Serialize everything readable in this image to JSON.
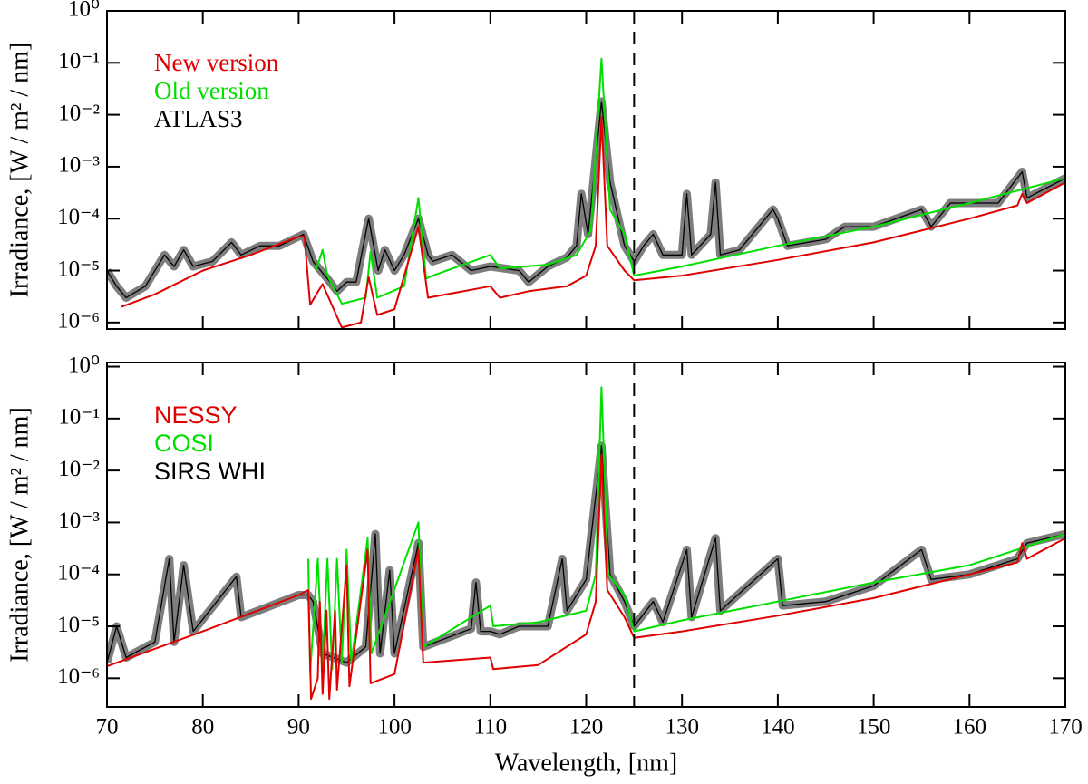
{
  "chart_data": [
    {
      "type": "line",
      "ylabel": "Irradiance, [W / m² / nm]",
      "log_y": true,
      "legend": "upper left",
      "xlim": [
        70,
        170
      ],
      "ylim": [
        7.5e-07,
        1
      ],
      "yticks": [
        {
          "value": 1,
          "label": "10⁰"
        },
        {
          "value": 0.1,
          "label": "10⁻¹"
        },
        {
          "value": 0.01,
          "label": "10⁻²"
        },
        {
          "value": 0.001,
          "label": "10⁻³"
        },
        {
          "value": 0.0001,
          "label": "10⁻⁴"
        },
        {
          "value": 1e-05,
          "label": "10⁻⁵"
        },
        {
          "value": 1e-06,
          "label": "10⁻⁶"
        }
      ],
      "vline": 125,
      "series": [
        {
          "name": "New version",
          "color": "#e00000",
          "x": [
            71.5,
            75,
            80,
            85,
            90,
            90.6,
            91.2,
            92.5,
            94.5,
            96.5,
            97.3,
            98.2,
            100,
            102.5,
            103.5,
            110,
            111,
            114,
            118,
            120,
            121,
            121.6,
            122.2,
            124,
            125,
            130,
            140,
            150,
            160,
            165,
            165.5,
            166,
            170
          ],
          "values": [
            2e-06,
            3.5e-06,
            1e-05,
            2e-05,
            4.5e-05,
            4.5e-05,
            2.2e-06,
            5.5e-06,
            8e-07,
            1e-06,
            7.5e-06,
            1.4e-06,
            1.8e-06,
            7e-05,
            3e-06,
            5e-06,
            3e-06,
            4e-06,
            5e-06,
            8e-06,
            3e-05,
            0.009,
            3e-05,
            1e-05,
            6.5e-06,
            8e-06,
            1.6e-05,
            3.5e-05,
            0.0001,
            0.00018,
            0.0003,
            0.0002,
            0.0005
          ]
        },
        {
          "name": "Old version",
          "color": "#00e000",
          "x": [
            91.8,
            92.5,
            93,
            94.5,
            97,
            97.5,
            98.2,
            101,
            102.5,
            103.3,
            104,
            110,
            111,
            116,
            119,
            120.5,
            121.6,
            122.5,
            124,
            125,
            130,
            140,
            150,
            160,
            170
          ],
          "values": [
            1e-05,
            2.5e-05,
            8e-06,
            2.3e-06,
            3e-06,
            2.3e-05,
            3e-06,
            5e-06,
            0.00025,
            7e-06,
            8e-06,
            2e-05,
            1.1e-05,
            1.3e-05,
            2e-05,
            6e-05,
            0.12,
            0.00015,
            5e-05,
            8e-06,
            1.2e-05,
            3e-05,
            7e-05,
            0.0002,
            0.0006
          ]
        },
        {
          "name": "ATLAS3",
          "color": "#000000",
          "uncertainty_band": true,
          "x": [
            70,
            71,
            72,
            74,
            76,
            77,
            78,
            79,
            81,
            83,
            84,
            86,
            88,
            90.5,
            91.5,
            93,
            94,
            95,
            96,
            97.3,
            98.3,
            99,
            100,
            101,
            102.5,
            103.5,
            104,
            106,
            108,
            110,
            113,
            114,
            116,
            118,
            119,
            119.5,
            120.2,
            121.6,
            122.5,
            124,
            125,
            126,
            127,
            128,
            130,
            130.5,
            131,
            133,
            133.5,
            134,
            136,
            139.5,
            140,
            141,
            145,
            147,
            150,
            155,
            156,
            158,
            160,
            163,
            165.5,
            166,
            170
          ],
          "values": [
            1e-05,
            5e-06,
            3e-06,
            5e-06,
            2e-05,
            1.2e-05,
            2.5e-05,
            1.2e-05,
            1.5e-05,
            3.5e-05,
            2e-05,
            3e-05,
            3e-05,
            5e-05,
            1.5e-05,
            7e-06,
            4e-06,
            6e-06,
            6e-06,
            0.0001,
            1e-05,
            2.5e-05,
            1e-05,
            2e-05,
            0.0001,
            2e-05,
            1.5e-05,
            2e-05,
            1e-05,
            1.2e-05,
            1e-05,
            6e-06,
            1.2e-05,
            1.8e-05,
            3e-05,
            0.0003,
            5e-05,
            0.018,
            0.0005,
            3e-05,
            1.5e-05,
            3e-05,
            5e-05,
            2e-05,
            2e-05,
            0.0003,
            2e-05,
            5e-05,
            0.0005,
            2e-05,
            2.5e-05,
            0.00015,
            0.0001,
            3e-05,
            4e-05,
            7e-05,
            7e-05,
            0.00015,
            7e-05,
            0.0002,
            0.0002,
            0.0002,
            0.0008,
            0.00025,
            0.0006
          ]
        }
      ]
    },
    {
      "type": "line",
      "ylabel": "Irradiance, [W / m² / nm]",
      "xlabel": "Wavelength, [nm]",
      "log_y": true,
      "legend": "upper left",
      "xlim": [
        70,
        170
      ],
      "xticks": [
        70,
        80,
        90,
        100,
        110,
        120,
        130,
        140,
        150,
        160,
        170
      ],
      "ylim": [
        2.8e-07,
        1.2
      ],
      "yticks": [
        {
          "value": 1,
          "label": "10⁰"
        },
        {
          "value": 0.1,
          "label": "10⁻¹"
        },
        {
          "value": 0.01,
          "label": "10⁻²"
        },
        {
          "value": 0.001,
          "label": "10⁻³"
        },
        {
          "value": 0.0001,
          "label": "10⁻⁴"
        },
        {
          "value": 1e-05,
          "label": "10⁻⁵"
        },
        {
          "value": 1e-06,
          "label": "10⁻⁶"
        }
      ],
      "vline": 125,
      "series": [
        {
          "name": "NESSY",
          "color": "#e00000",
          "x": [
            70,
            80,
            90,
            91,
            91.3,
            92,
            92.2,
            92.5,
            92.9,
            93.2,
            93.8,
            94,
            95,
            95.3,
            97.2,
            97.5,
            100,
            102.5,
            103,
            110,
            110.3,
            115,
            120,
            121,
            121.6,
            122.2,
            124,
            125,
            130,
            140,
            150,
            160,
            165,
            165.5,
            166,
            170
          ],
          "values": [
            1.7e-06,
            8e-06,
            4e-05,
            5e-05,
            4e-07,
            1e-06,
            3e-05,
            5e-07,
            2e-05,
            4e-07,
            2e-05,
            6e-07,
            0.00015,
            7e-07,
            0.0003,
            8e-07,
            1.2e-06,
            0.0003,
            2e-06,
            2.5e-06,
            1.5e-06,
            1.8e-06,
            7e-06,
            3e-05,
            0.02,
            5e-05,
            1.5e-05,
            6e-06,
            8e-06,
            1.6e-05,
            3.5e-05,
            0.0001,
            0.00017,
            0.0004,
            0.0002,
            0.0005
          ]
        },
        {
          "name": "COSI",
          "color": "#00e000",
          "x": [
            91,
            91.2,
            92,
            92.5,
            93,
            93.5,
            94,
            94.5,
            95,
            95.5,
            97.2,
            97.6,
            102.5,
            103,
            110,
            110.3,
            115,
            120,
            121,
            121.6,
            122.3,
            124,
            125,
            130,
            140,
            150,
            160,
            170
          ],
          "values": [
            0.0002,
            1.3e-06,
            0.0002,
            1.5e-06,
            0.0002,
            1.5e-06,
            0.0002,
            2e-06,
            0.0003,
            2e-06,
            0.0005,
            3e-06,
            0.001,
            4e-06,
            2.5e-05,
            1e-05,
            1.2e-05,
            2e-05,
            0.0001,
            0.4,
            0.0001,
            4e-05,
            8e-06,
            1.3e-05,
            3e-05,
            7e-05,
            0.00015,
            0.0006
          ]
        },
        {
          "name": "SIRS WHI",
          "color": "#000000",
          "uncertainty_band": true,
          "x": [
            70,
            71,
            72,
            75,
            76.5,
            77,
            78,
            79,
            83.5,
            84,
            90,
            91,
            91.5,
            92.5,
            95,
            97,
            98,
            98.5,
            99.5,
            100,
            102.5,
            103,
            108,
            108.5,
            109,
            110,
            111,
            113,
            116,
            117.5,
            118,
            120,
            121.6,
            122.5,
            124,
            125,
            127,
            128,
            130.5,
            131,
            133.5,
            134,
            140,
            140.5,
            145,
            150,
            155,
            156,
            160,
            165,
            166,
            170
          ],
          "values": [
            2e-06,
            1e-05,
            2.5e-06,
            5e-06,
            0.0002,
            5e-06,
            0.00015,
            8e-06,
            9e-05,
            1.5e-05,
            4e-05,
            4e-05,
            3e-05,
            3e-06,
            2e-06,
            4e-06,
            0.0006,
            3e-06,
            0.00012,
            3e-06,
            0.0004,
            4e-06,
            9e-06,
            7e-05,
            8e-06,
            8e-06,
            7e-06,
            1e-05,
            1e-05,
            0.0002,
            2e-05,
            8e-05,
            0.03,
            0.0001,
            3e-05,
            1e-05,
            3e-05,
            1.2e-05,
            0.0003,
            1.5e-05,
            0.0005,
            2e-05,
            0.0002,
            2.5e-05,
            3e-05,
            6e-05,
            0.0003,
            8e-05,
            0.0001,
            0.0002,
            0.0004,
            0.0006
          ]
        }
      ]
    }
  ]
}
